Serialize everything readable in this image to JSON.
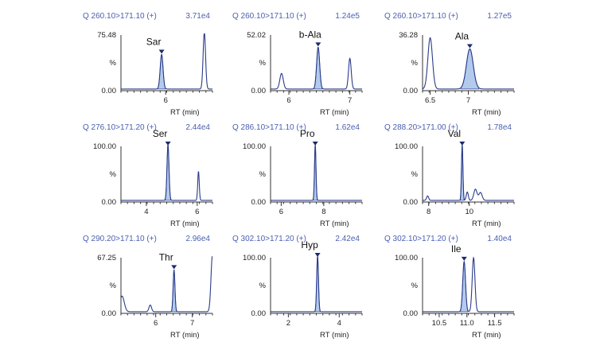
{
  "chart_data": [
    {
      "type": "line",
      "title": "Q 260.10>171.10 (+)",
      "intensity": "3.71e4",
      "xlabel": "RT (min)",
      "ylabel": "%",
      "y_ticks": [
        "75.48",
        "%",
        "0.00"
      ],
      "ylim": [
        0,
        100
      ],
      "xlim": [
        4.9,
        7.15
      ],
      "x_ticks": [
        6
      ],
      "baseline": 3,
      "peak_label": "Sar",
      "labeled_peak_index": 0,
      "peaks": [
        {
          "rt": 5.9,
          "height": 62,
          "width": 0.035
        },
        {
          "rt": 6.95,
          "height": 102,
          "width": 0.03
        }
      ]
    },
    {
      "type": "line",
      "title": "Q 260.10>171.10 (+)",
      "intensity": "1.24e5",
      "xlabel": "RT (min)",
      "ylabel": "%",
      "y_ticks": [
        "52.02",
        "%",
        "0.00"
      ],
      "ylim": [
        0,
        100
      ],
      "xlim": [
        5.7,
        7.2
      ],
      "x_ticks": [
        6,
        7
      ],
      "baseline": 3,
      "peak_label": "b-Ala",
      "labeled_peak_index": 1,
      "peaks": [
        {
          "rt": 5.88,
          "height": 28,
          "width": 0.028
        },
        {
          "rt": 6.48,
          "height": 75,
          "width": 0.025
        },
        {
          "rt": 7.0,
          "height": 55,
          "width": 0.022
        }
      ]
    },
    {
      "type": "line",
      "title": "Q 260.10>171.10 (+)",
      "intensity": "1.27e5",
      "xlabel": "RT (min)",
      "ylabel": "%",
      "y_ticks": [
        "36.28",
        "%",
        "0.00"
      ],
      "ylim": [
        0,
        100
      ],
      "xlim": [
        6.4,
        7.6
      ],
      "x_ticks": [
        6.5,
        7.0
      ],
      "baseline": 3,
      "peak_label": "Ala",
      "labeled_peak_index": 1,
      "peaks": [
        {
          "rt": 6.5,
          "height": 92,
          "width": 0.03
        },
        {
          "rt": 7.02,
          "height": 72,
          "width": 0.045
        }
      ]
    },
    {
      "type": "line",
      "title": "Q 276.10>171.20 (+)",
      "intensity": "2.44e4",
      "xlabel": "RT (min)",
      "ylabel": "%",
      "y_ticks": [
        "100.00",
        "%",
        "0.00"
      ],
      "ylim": [
        0,
        100
      ],
      "xlim": [
        3,
        6.6
      ],
      "x_ticks": [
        4,
        6
      ],
      "baseline": 3,
      "peak_label": "Ser",
      "labeled_peak_index": 0,
      "peaks": [
        {
          "rt": 4.85,
          "height": 100,
          "width": 0.04
        },
        {
          "rt": 6.05,
          "height": 52,
          "width": 0.03
        }
      ]
    },
    {
      "type": "line",
      "title": "Q 286.10>171.10 (+)",
      "intensity": "1.62e4",
      "xlabel": "RT (min)",
      "ylabel": "%",
      "y_ticks": [
        "100.00",
        "%",
        "0.00"
      ],
      "ylim": [
        0,
        100
      ],
      "xlim": [
        5.5,
        9.8
      ],
      "x_ticks": [
        6,
        8
      ],
      "baseline": 3,
      "peak_label": "Pro",
      "labeled_peak_index": 0,
      "peaks": [
        {
          "rt": 7.6,
          "height": 100,
          "width": 0.035
        }
      ]
    },
    {
      "type": "line",
      "title": "Q 288.20>171.00 (+)",
      "intensity": "1.78e4",
      "xlabel": "RT (min)",
      "ylabel": "%",
      "y_ticks": [
        "100.00",
        "%",
        "0.00"
      ],
      "ylim": [
        0,
        100
      ],
      "xlim": [
        7.7,
        12.2
      ],
      "x_ticks": [
        8,
        10
      ],
      "baseline": 3,
      "peak_label": "Val",
      "labeled_peak_index": 1,
      "peaks": [
        {
          "rt": 7.95,
          "height": 8,
          "width": 0.05
        },
        {
          "rt": 9.65,
          "height": 100,
          "width": 0.035
        },
        {
          "rt": 9.9,
          "height": 15,
          "width": 0.05
        },
        {
          "rt": 10.3,
          "height": 20,
          "width": 0.08
        },
        {
          "rt": 10.55,
          "height": 14,
          "width": 0.08
        }
      ]
    },
    {
      "type": "line",
      "title": "Q 290.20>171.10 (+)",
      "intensity": "2.96e4",
      "xlabel": "RT (min)",
      "ylabel": "%",
      "y_ticks": [
        "67.25",
        "%",
        "0.00"
      ],
      "ylim": [
        0,
        100
      ],
      "xlim": [
        5.05,
        7.55
      ],
      "x_ticks": [
        6,
        7
      ],
      "baseline": 3,
      "peak_label": "Thr",
      "labeled_peak_index": 2,
      "peaks": [
        {
          "rt": 5.08,
          "height": 28,
          "width": 0.06
        },
        {
          "rt": 5.85,
          "height": 12,
          "width": 0.035
        },
        {
          "rt": 6.5,
          "height": 75,
          "width": 0.025
        },
        {
          "rt": 7.55,
          "height": 102,
          "width": 0.04
        }
      ]
    },
    {
      "type": "line",
      "title": "Q 302.10>171.20 (+)",
      "intensity": "2.42e4",
      "xlabel": "RT (min)",
      "ylabel": "%",
      "y_ticks": [
        "100.00",
        "%",
        "0.00"
      ],
      "ylim": [
        0,
        100
      ],
      "xlim": [
        1.3,
        4.9
      ],
      "x_ticks": [
        2,
        4
      ],
      "baseline": 3,
      "peak_label": "Hyp",
      "labeled_peak_index": 0,
      "peaks": [
        {
          "rt": 3.15,
          "height": 100,
          "width": 0.035
        }
      ]
    },
    {
      "type": "line",
      "title": "Q 302.10>171.20 (+)",
      "intensity": "1.40e4",
      "xlabel": "RT (min)",
      "ylabel": "%",
      "y_ticks": [
        "100.00",
        "%",
        "0.00"
      ],
      "ylim": [
        0,
        100
      ],
      "xlim": [
        10.2,
        11.85
      ],
      "x_ticks": [
        "10.5",
        "11.0",
        "11.5"
      ],
      "baseline": 3,
      "peak_label": "Ile",
      "labeled_peak_index": 0,
      "peaks": [
        {
          "rt": 10.95,
          "height": 90,
          "width": 0.025
        },
        {
          "rt": 11.12,
          "height": 97,
          "width": 0.025
        }
      ]
    }
  ]
}
